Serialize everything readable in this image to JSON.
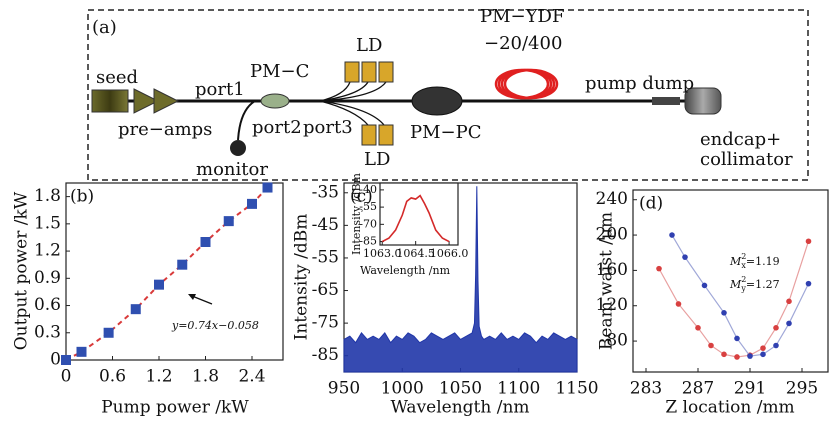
{
  "diagram": {
    "label": "(a)",
    "components": {
      "seed": "seed",
      "preamps": "pre−amps",
      "port1": "port1",
      "pmc": "PM−C",
      "port2": "port2",
      "monitor": "monitor",
      "port3": "port3",
      "ld_top": "LD",
      "ld_bottom": "LD",
      "pmpc": "PM−PC",
      "ydf_1": "PM−YDF",
      "ydf_2": "−20/400",
      "pump_dump": "pump dump",
      "endcap_1": "endcap+",
      "endcap_2": "collimator"
    }
  },
  "chart_data": [
    {
      "type": "scatter",
      "title": "(b)",
      "x_label": "Pump power /kW",
      "y_label": "Output power /kW",
      "annotation": "y=0.74x−0.058",
      "x": [
        0,
        0.2,
        0.55,
        0.9,
        1.2,
        1.5,
        1.8,
        2.1,
        2.4,
        2.6
      ],
      "series": [
        {
          "color": "#2f4fb0",
          "marker": "square",
          "line_color": "#d93a3a",
          "dashed": true,
          "values": [
            0,
            0.09,
            0.3,
            0.56,
            0.83,
            1.05,
            1.3,
            1.53,
            1.72,
            1.9
          ]
        }
      ],
      "xlim": [
        0,
        2.8
      ],
      "ylim": [
        0,
        1.95
      ],
      "xticks": [
        0,
        0.6,
        1.2,
        1.8,
        2.4
      ],
      "yticks": [
        0,
        0.3,
        0.6,
        0.9,
        1.2,
        1.5,
        1.8
      ]
    },
    {
      "type": "line",
      "title": "(c)",
      "x_label": "Wavelength /nm",
      "y_label": "Intensity /dBm",
      "color": "#2036a8",
      "x": [
        950,
        955,
        960,
        965,
        970,
        975,
        980,
        985,
        990,
        995,
        1000,
        1005,
        1010,
        1015,
        1020,
        1025,
        1030,
        1035,
        1040,
        1045,
        1050,
        1055,
        1060,
        1062,
        1063,
        1064,
        1065,
        1066,
        1068,
        1070,
        1075,
        1080,
        1085,
        1090,
        1095,
        1100,
        1105,
        1110,
        1115,
        1120,
        1125,
        1130,
        1135,
        1140,
        1145,
        1150
      ],
      "values": [
        -80,
        -79,
        -81,
        -78,
        -80,
        -79,
        -80,
        -78,
        -81,
        -79,
        -80,
        -78,
        -79,
        -81,
        -80,
        -78,
        -79,
        -80,
        -79,
        -78,
        -80,
        -79,
        -78,
        -75,
        -60,
        -33,
        -62,
        -76,
        -79,
        -80,
        -79,
        -80,
        -78,
        -80,
        -79,
        -80,
        -78,
        -79,
        -81,
        -79,
        -80,
        -78,
        -79,
        -80,
        -79,
        -80
      ],
      "xlim": [
        950,
        1150
      ],
      "ylim": [
        -90,
        -32
      ],
      "xticks": [
        950,
        1000,
        1050,
        1100,
        1150
      ],
      "yticks": [
        -35,
        -45,
        -55,
        -65,
        -75,
        -85
      ],
      "inset": {
        "type": "line",
        "x_label": "Wavelength /nm",
        "y_label": "Intensity /dBm",
        "color": "#d42a2a",
        "x": [
          1063.0,
          1063.3,
          1063.6,
          1063.9,
          1064.1,
          1064.3,
          1064.5,
          1064.7,
          1064.9,
          1065.1,
          1065.4,
          1065.7,
          1066.0
        ],
        "values": [
          -85,
          -82,
          -75,
          -62,
          -50,
          -47,
          -48,
          -45,
          -52,
          -60,
          -75,
          -82,
          -85
        ],
        "xlim": [
          1062.9,
          1066.4
        ],
        "ylim": [
          -88,
          -34
        ],
        "xticks": [
          {
            "value": 1063,
            "label": "1063.0"
          },
          {
            "value": 1064.5,
            "label": "1064.5"
          },
          {
            "value": 1066,
            "label": "1066.0"
          }
        ],
        "yticks": [
          -40,
          -55,
          -70,
          -85
        ]
      }
    },
    {
      "type": "scatter",
      "title": "(d)",
      "x_label": "Z location /mm",
      "y_label": "Beam waist /μm",
      "annotations": [
        {
          "symbol": "M",
          "sup": "2",
          "sub": "x",
          "text": "=1.19"
        },
        {
          "symbol": "M",
          "sup": "2",
          "sub": "y",
          "text": "=1.27"
        }
      ],
      "series": [
        {
          "color": "#d84040",
          "marker": "circle",
          "line_color": "#e8a0a0",
          "dashed": false,
          "x": [
            284,
            285.5,
            287,
            288,
            289,
            290,
            291,
            292,
            293,
            294,
            295.5
          ],
          "values": [
            162,
            122,
            95,
            75,
            65,
            62,
            64,
            72,
            95,
            125,
            193
          ]
        },
        {
          "color": "#3040b0",
          "marker": "circle",
          "line_color": "#a0a8d8",
          "dashed": false,
          "x": [
            285,
            286,
            287.5,
            289,
            290,
            291,
            292,
            293,
            294,
            295.5
          ],
          "values": [
            200,
            175,
            143,
            112,
            83,
            63,
            65,
            75,
            100,
            145
          ]
        }
      ],
      "xlim": [
        282,
        297
      ],
      "ylim": [
        45,
        251
      ],
      "xticks": [
        283,
        287,
        291,
        295
      ],
      "yticks": [
        80,
        120,
        160,
        200,
        240
      ]
    }
  ]
}
